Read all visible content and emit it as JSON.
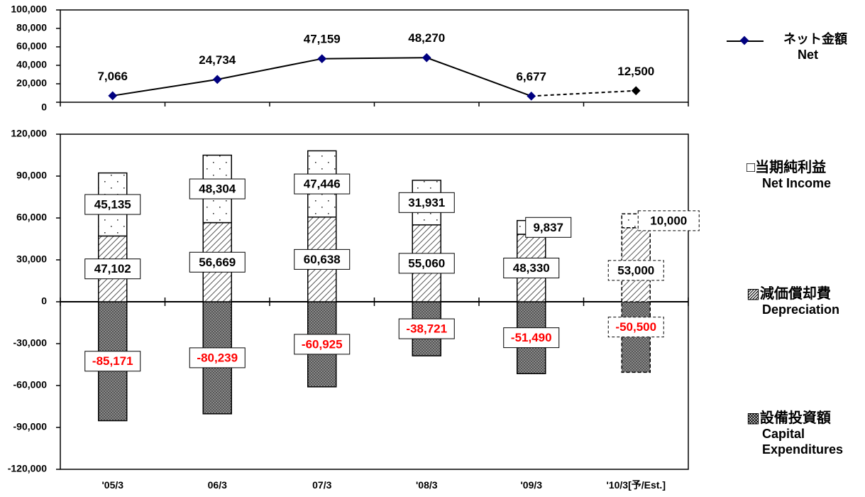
{
  "chart_data": [
    {
      "type": "line",
      "categories": [
        "'05/3",
        "06/3",
        "07/3",
        "'08/3",
        "'09/3",
        "'10/3[予/Est.]"
      ],
      "series": [
        {
          "name": "ネット金額 Net",
          "values": [
            7066,
            24734,
            47159,
            48270,
            6677,
            12500
          ],
          "estimated_last": true,
          "color": "#000080"
        }
      ],
      "data_labels": [
        "7,066",
        "24,734",
        "47,159",
        "48,270",
        "6,677",
        "12,500"
      ],
      "y_ticks": [
        "0",
        "20,000",
        "40,000",
        "60,000",
        "80,000",
        "100,000"
      ],
      "ylim": [
        0,
        100000
      ]
    },
    {
      "type": "bar",
      "stacked": true,
      "categories": [
        "'05/3",
        "06/3",
        "07/3",
        "'08/3",
        "'09/3",
        "'10/3[予/Est.]"
      ],
      "estimated_last": true,
      "series": [
        {
          "name": "当期純利益 Net Income",
          "values": [
            45135,
            48304,
            47446,
            31931,
            9837,
            10000
          ],
          "labels": [
            "45,135",
            "48,304",
            "47,446",
            "31,931",
            "9,837",
            "10,000"
          ]
        },
        {
          "name": "減価償却費 Depreciation",
          "values": [
            47102,
            56669,
            60638,
            55060,
            48330,
            53000
          ],
          "labels": [
            "47,102",
            "56,669",
            "60,638",
            "55,060",
            "48,330",
            "53,000"
          ]
        },
        {
          "name": "設備投資額 Capital Expenditures",
          "values": [
            -85171,
            -80239,
            -60925,
            -38721,
            -51490,
            -50500
          ],
          "labels": [
            "-85,171",
            "-80,239",
            "-60,925",
            "-38,721",
            "-51,490",
            "-50,500"
          ],
          "label_color": "#ff0000"
        }
      ],
      "y_ticks": [
        "120,000",
        "90,000",
        "60,000",
        "30,000",
        "0",
        "-30,000",
        "-60,000",
        "-90,000",
        "-120,000"
      ],
      "ylim": [
        -120000,
        120000
      ]
    }
  ],
  "legend": {
    "net": {
      "line1": "ネット金額",
      "line2": "Net"
    },
    "net_income": {
      "symbol": "□",
      "line1": "当期純利益",
      "line2": "Net Income"
    },
    "depreciation": {
      "symbol": "▨",
      "line1": "減価償却費",
      "line2": "Depreciation"
    },
    "capex": {
      "symbol": "▩",
      "line1": "設備投資額",
      "line2": "Capital",
      "line3": "Expenditures"
    }
  }
}
